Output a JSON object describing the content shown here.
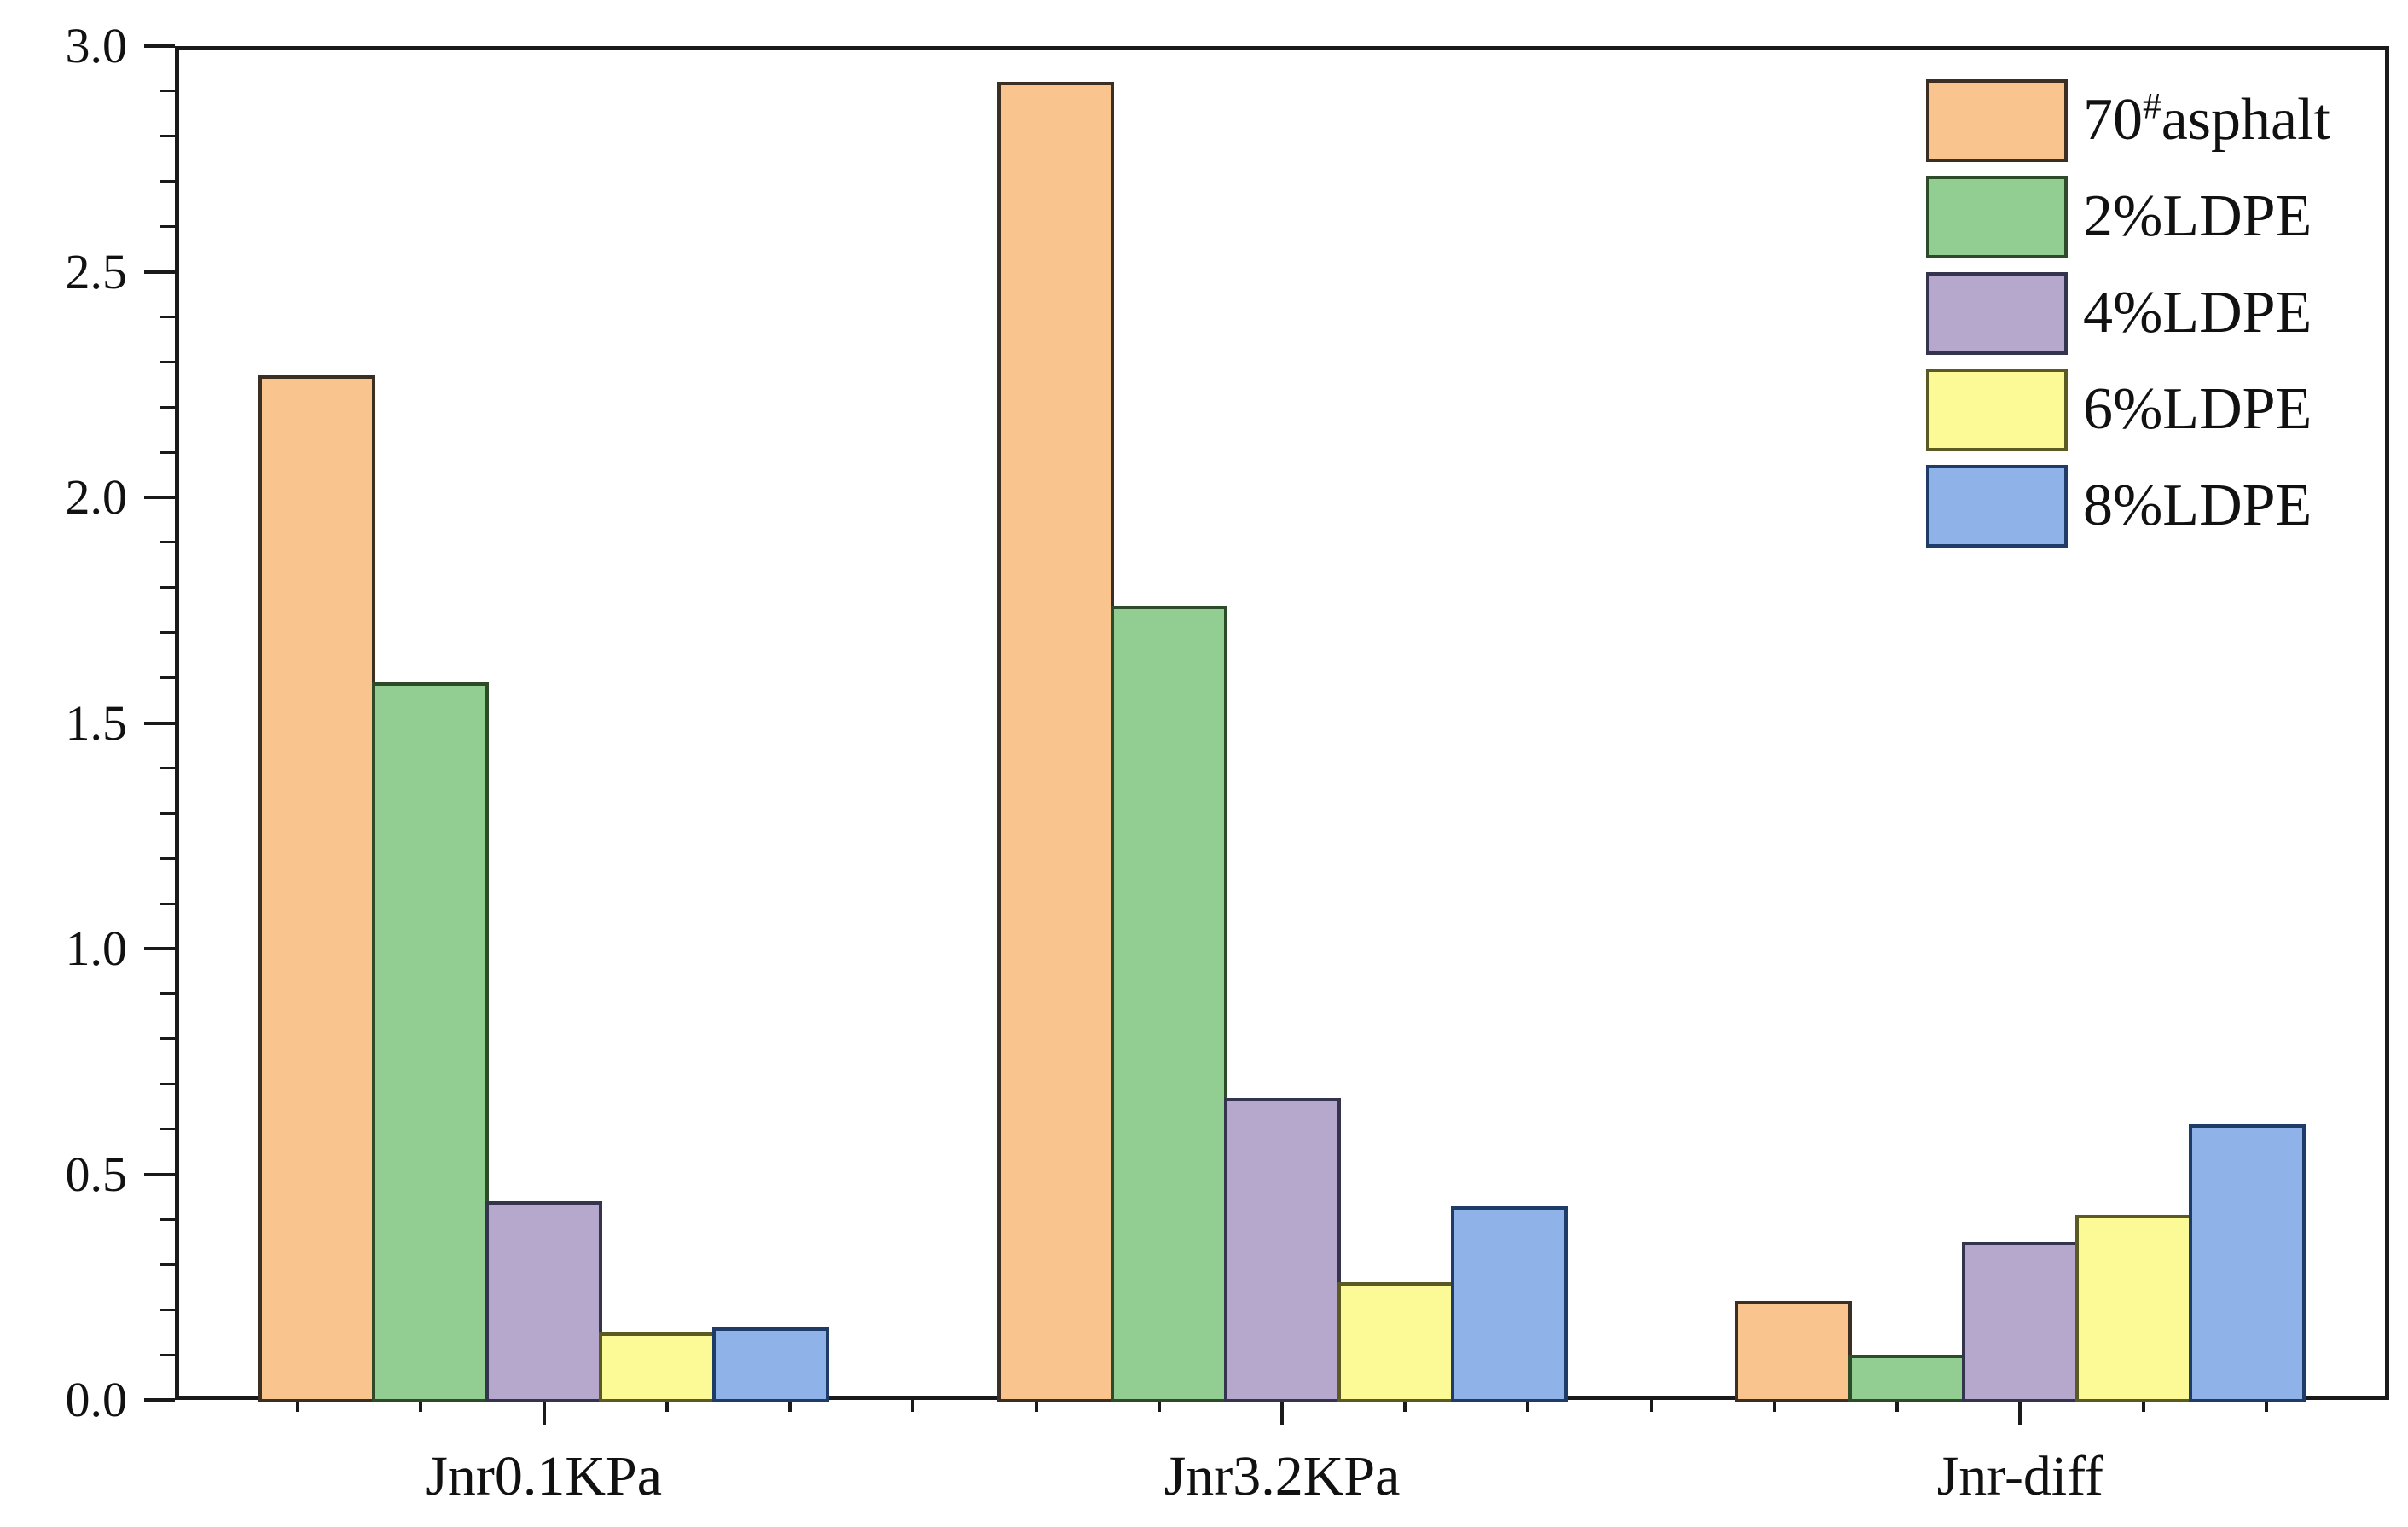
{
  "chart_data": {
    "type": "bar",
    "title": "",
    "xlabel": "",
    "ylabel": "",
    "categories": [
      "Jnr0.1KPa",
      "Jnr3.2KPa",
      "Jnr-diff"
    ],
    "series": [
      {
        "name": "70#asphalt",
        "label_parts": {
          "pre": "70",
          "sup": "#",
          "post": "asphalt"
        },
        "values": [
          2.27,
          2.92,
          0.22
        ],
        "fill": "#FAC48E",
        "edge": "#3a2f22"
      },
      {
        "name": "2%LDPE",
        "label_parts": {
          "pre": "2%LDPE",
          "sup": "",
          "post": ""
        },
        "values": [
          1.59,
          1.76,
          0.1
        ],
        "fill": "#92CD92",
        "edge": "#2e4b29"
      },
      {
        "name": "4%LDPE",
        "label_parts": {
          "pre": "4%LDPE",
          "sup": "",
          "post": ""
        },
        "values": [
          0.44,
          0.67,
          0.35
        ],
        "fill": "#B5A8CC",
        "edge": "#34344e"
      },
      {
        "name": "6%LDPE",
        "label_parts": {
          "pre": "6%LDPE",
          "sup": "",
          "post": ""
        },
        "values": [
          0.15,
          0.26,
          0.41
        ],
        "fill": "#FBFA96",
        "edge": "#5a5a22"
      },
      {
        "name": "8%LDPE",
        "label_parts": {
          "pre": "8%LDPE",
          "sup": "",
          "post": ""
        },
        "values": [
          0.16,
          0.43,
          0.61
        ],
        "fill": "#8FB3E9",
        "edge": "#1f3c69"
      }
    ],
    "ylim": [
      0,
      3.0
    ],
    "y_major_tick_labels": [
      "0.0",
      "0.5",
      "1.0",
      "1.5",
      "2.0",
      "2.5",
      "3.0"
    ],
    "y_major_step": 0.5,
    "y_minor_step": 0.1,
    "grid": false,
    "legend_position": "upper right",
    "frame_color": "#1a1a1a",
    "background": "#ffffff"
  }
}
